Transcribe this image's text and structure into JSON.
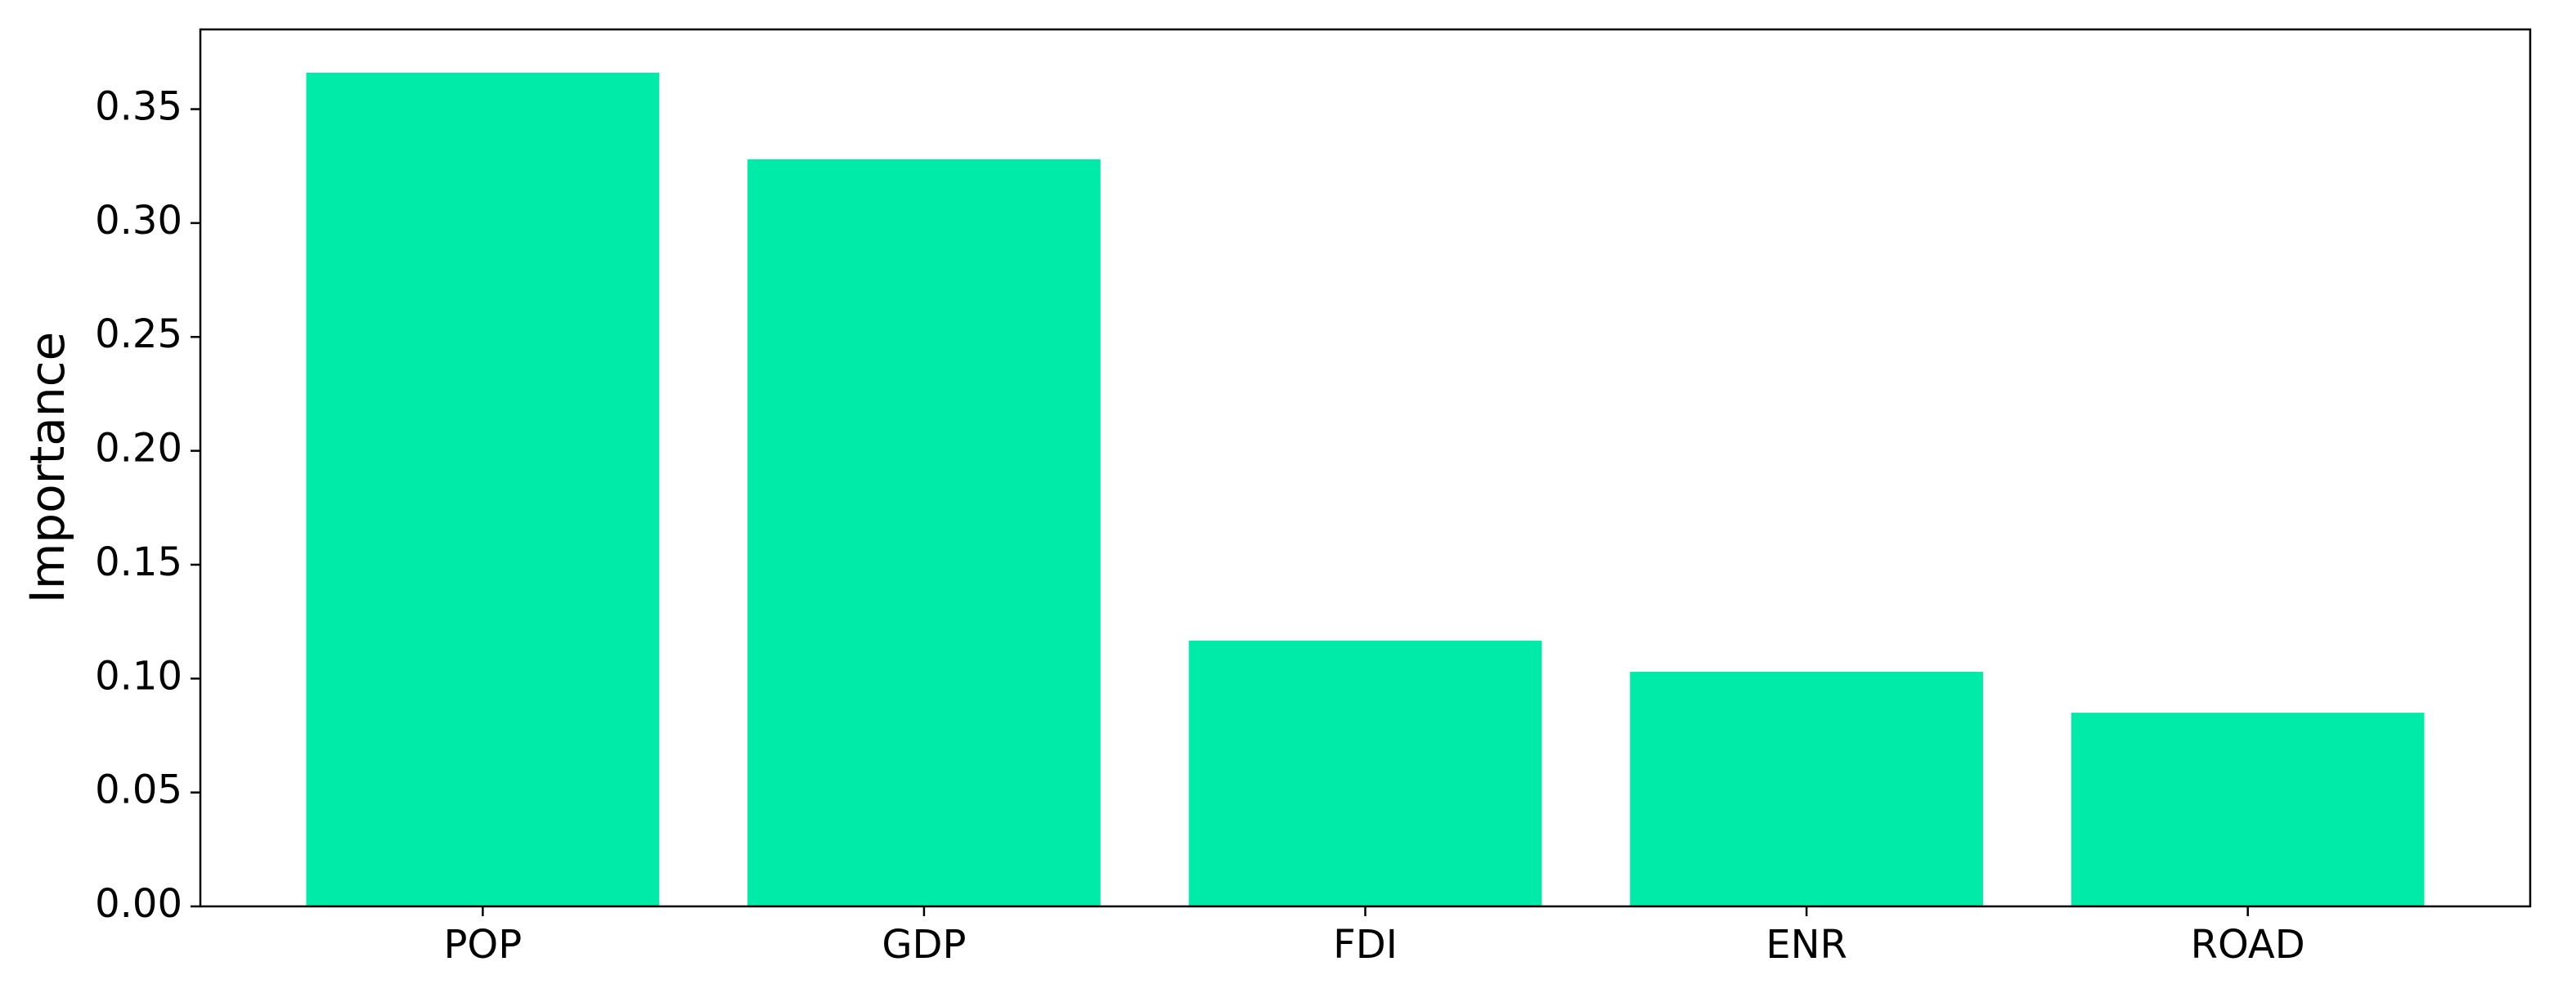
{
  "chart_data": {
    "type": "bar",
    "y_label": "Importance",
    "categories": [
      "POP",
      "GDP",
      "FDI",
      "ENR",
      "ROAD"
    ],
    "values": [
      0.366,
      0.328,
      0.1167,
      0.103,
      0.085
    ],
    "color": "#00eba8",
    "ylim": [
      0,
      0.385
    ],
    "yticks": [
      {
        "value": 0,
        "label": "0.00"
      },
      {
        "value": 0.05,
        "label": "0.05"
      },
      {
        "value": 0.1,
        "label": "0.10"
      },
      {
        "value": 0.15,
        "label": "0.15"
      },
      {
        "value": 0.2,
        "label": "0.20"
      },
      {
        "value": 0.25,
        "label": "0.25"
      },
      {
        "value": 0.3,
        "label": "0.30"
      },
      {
        "value": 0.35,
        "label": "0.35"
      }
    ],
    "grid": false
  }
}
